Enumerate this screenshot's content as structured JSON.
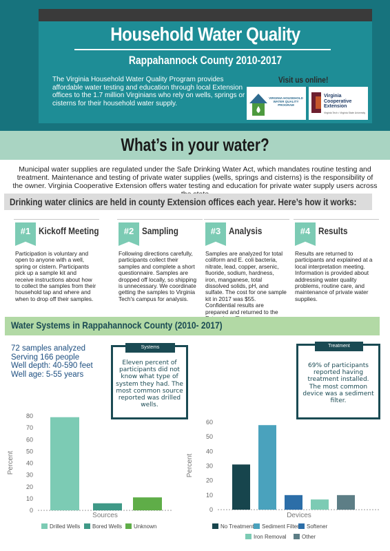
{
  "header": {
    "title": "Household Water Quality",
    "subtitle": "Rappahannock County 2010-2017",
    "intro": "The Virginia Household Water Quality Program provides affordable water testing and education through local Extension offices to the 1.7 million Virginians who rely on wells, springs or cisterns for their household water supply.",
    "visit": "Visit us online!",
    "logo_vhwqp": "VIRGINIA HOUSEHOLD WATER QUALITY PROGRAM",
    "logo_vce": "Virginia Cooperative Extension",
    "logo_vce_sub": "Virginia Tech • Virginia State University"
  },
  "band": {
    "title": "What’s in your water?"
  },
  "lead": "Municipal water supplies are regulated under the Safe Drinking Water Act, which mandates routine testing and treatment. Maintenance and testing of private water supplies (wells, springs and cisterns) is the responsibility of the owner.  Virginia Cooperative Extension offers water testing and education for private water supply users across the state",
  "clinics": {
    "heading": "Drinking water clinics are held in county Extension offices each year.  Here’s how it works:"
  },
  "steps": [
    {
      "num": "#1",
      "title": "Kickoff Meeting",
      "text": "Participation is voluntary and open to anyone with a well, spring or cistern. Participants pick up a sample kit and receive instructions about how to collect the samples from their household tap and where and when to drop off their samples."
    },
    {
      "num": "#2",
      "title": "Sampling",
      "text": "Following directions carefully, participants collect their samples and complete a short questionnaire. Samples are dropped off locally, so shipping is unnecessary. We coordinate getting the samples to Virginia Tech's campus for analysis."
    },
    {
      "num": "#3",
      "title": "Analysis",
      "text": "Samples are analyzed for total coliform and E. coli bacteria, nitrate, lead, copper, arsenic, fluoride, sodium, hardness, iron, manganese, total dissolved solids, pH, and sulfate. The cost for one sample kit in 2017 was $55. Confidential results are prepared and returned to the Extension office."
    },
    {
      "num": "#4",
      "title": "Results",
      "text": "Results are returned to participants and explained at a local interpretation meeting. Information is provided about addressing water quality problems, routine care, and maintenance of private water supplies."
    }
  ],
  "systems": {
    "heading": "Water Systems in Rappahannock County (2010- 2017)",
    "stats": [
      "72 samples analyzed",
      "Serving 166 people",
      "Well depth: 40-590 feet",
      "Well age: 5-55 years"
    ],
    "callout_tab": "Systems",
    "callout_text": "Eleven percent of participants did not know what type of system they had. The most common source reported was drilled wells.",
    "treatment_tab": "Treatment",
    "treatment_text": "69% of participants reported having treatment installed. The most common device was a sediment filter."
  },
  "chart_data": [
    {
      "type": "bar",
      "categories": [
        "Drilled Wells",
        "Bored Wells",
        "Unknown"
      ],
      "values": [
        79,
        6,
        11
      ],
      "colors": [
        "#7ccbb4",
        "#3f9987",
        "#5fad48"
      ],
      "xlabel": "Sources",
      "ylabel": "Percent",
      "ylim": [
        0,
        80
      ],
      "yticks": [
        0,
        10,
        20,
        30,
        40,
        50,
        60,
        70,
        80
      ],
      "legend": "bottom"
    },
    {
      "type": "bar",
      "categories": [
        "No Treatment",
        "Sediment Filter",
        "Softener",
        "Iron Removal",
        "Other"
      ],
      "values": [
        31,
        58,
        10,
        7,
        10
      ],
      "colors": [
        "#17454d",
        "#4aa2bd",
        "#2c6ea8",
        "#7ccbb4",
        "#5d7e86"
      ],
      "xlabel": "Devices",
      "ylabel": "Percent",
      "ylim": [
        0,
        60
      ],
      "yticks": [
        0,
        10,
        20,
        30,
        40,
        50,
        60
      ],
      "legend": "bottom"
    }
  ]
}
